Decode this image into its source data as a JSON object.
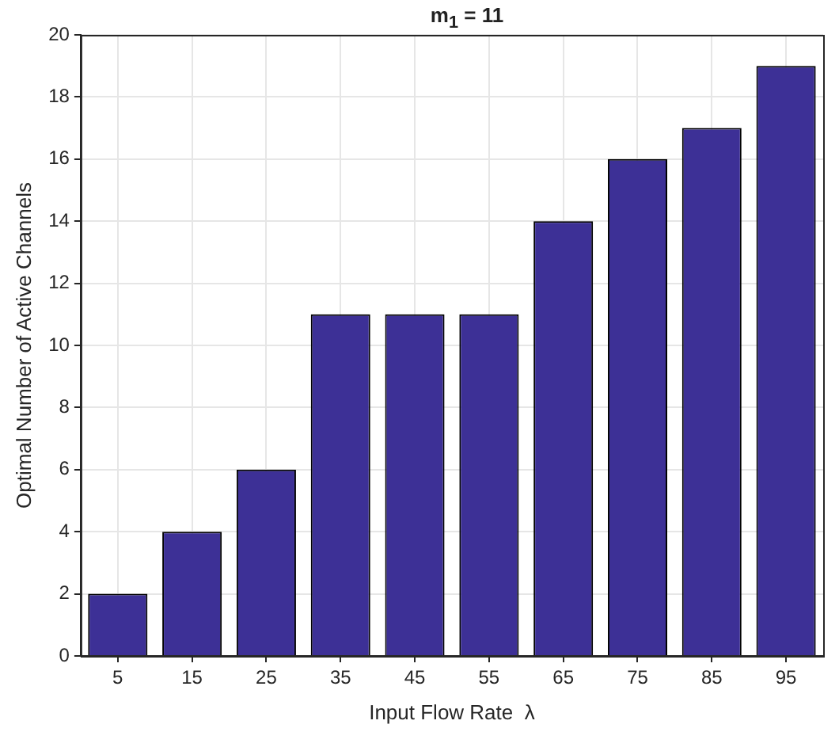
{
  "chart_data": {
    "type": "bar",
    "title": "m$_{1}$ = 11",
    "xlabel": "Input Flow Rate  λ",
    "ylabel": "Optimal Number of Active Channels",
    "categories": [
      "5",
      "15",
      "25",
      "35",
      "45",
      "55",
      "65",
      "75",
      "85",
      "95"
    ],
    "values": [
      2,
      4,
      6,
      11,
      11,
      11,
      14,
      16,
      17,
      19
    ],
    "color": "#3d3096",
    "ylim": [
      0,
      20
    ],
    "yticks": [
      0,
      2,
      4,
      6,
      8,
      10,
      12,
      14,
      16,
      18,
      20
    ],
    "grid": true,
    "legend": false
  }
}
